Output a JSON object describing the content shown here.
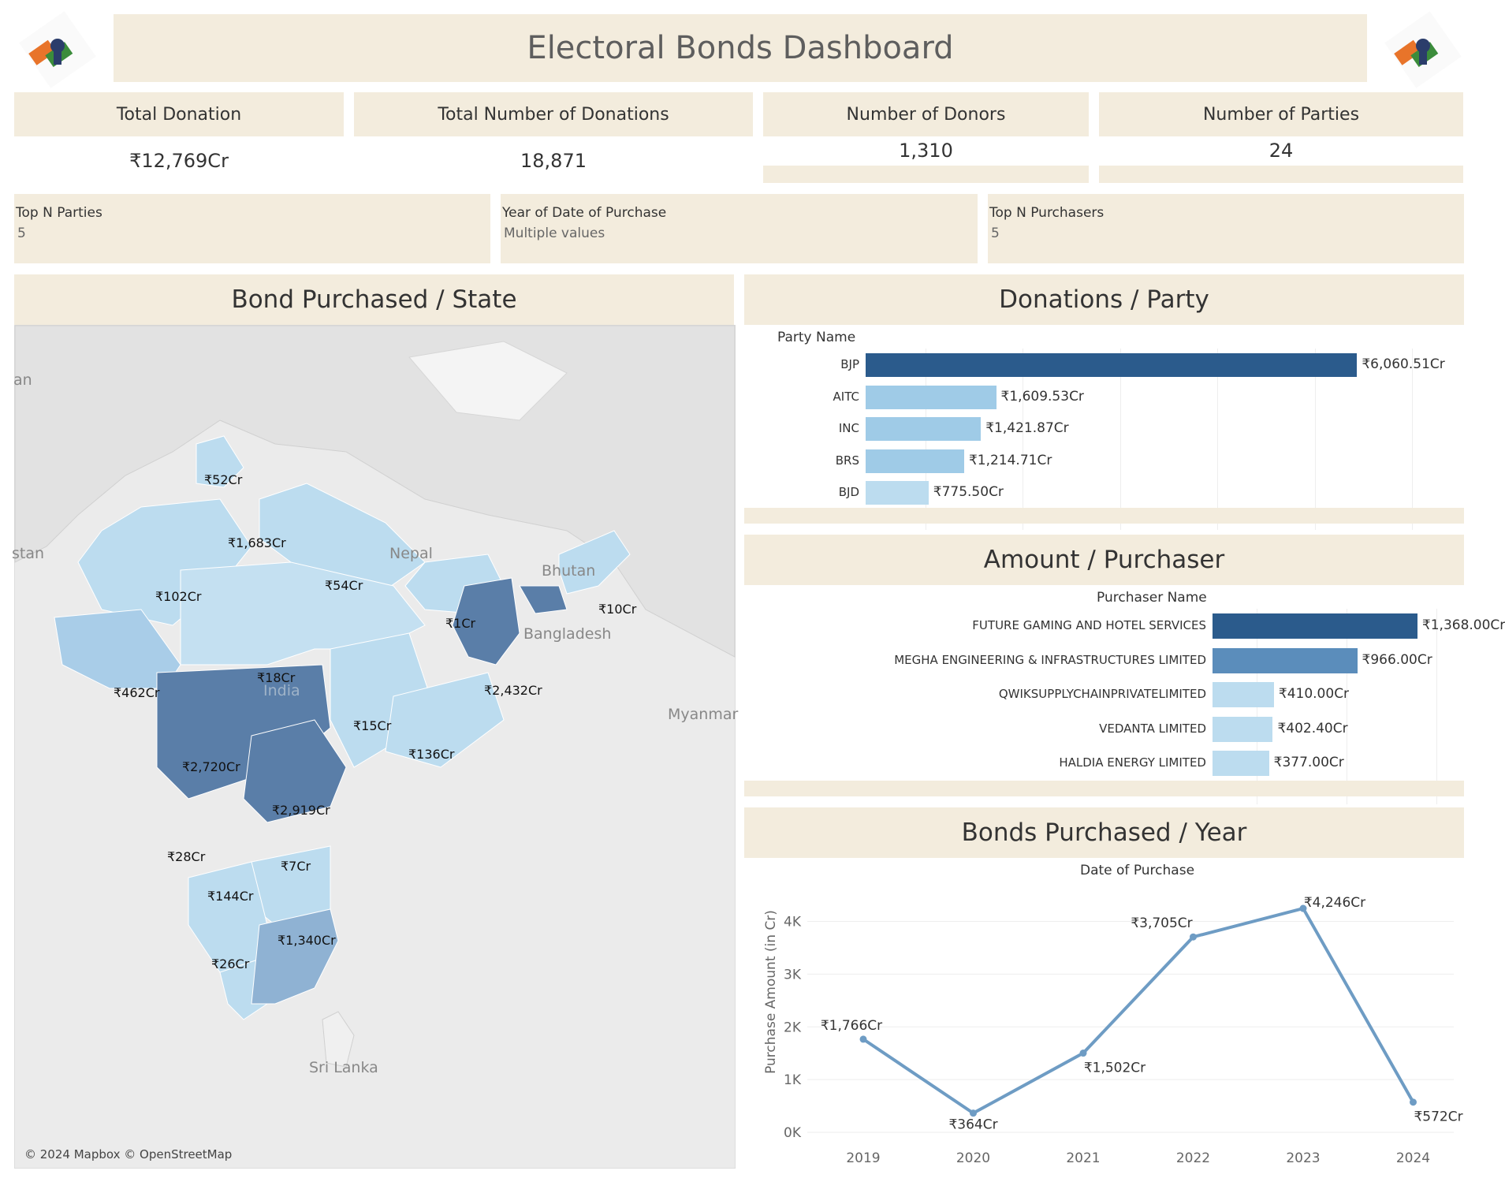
{
  "header": {
    "title": "Electoral Bonds Dashboard",
    "logo_left": "election-commission-logo",
    "logo_right": "election-commission-logo"
  },
  "kpis": [
    {
      "label": "Total Donation",
      "value": "₹12,769Cr"
    },
    {
      "label": "Total Number of Donations",
      "value": "18,871"
    },
    {
      "label": "Number of Donors",
      "value": "1,310"
    },
    {
      "label": "Number of Parties",
      "value": "24"
    }
  ],
  "filters": [
    {
      "label": "Top N Parties",
      "value": "5"
    },
    {
      "label": "Year of Date of Purchase",
      "value": "Multiple values"
    },
    {
      "label": "Top N Purchasers",
      "value": "5"
    }
  ],
  "map_section": {
    "title": "Bond Purchased / State",
    "credit": "© 2024 Mapbox © OpenStreetMap",
    "geo_labels": [
      "an",
      "stan",
      "Nepal",
      "Bhutan",
      "Bangladesh",
      "India",
      "Myanmar",
      "Sri Lanka"
    ],
    "state_values": [
      "₹52Cr",
      "₹1,683Cr",
      "₹102Cr",
      "₹54Cr",
      "₹1Cr",
      "₹10Cr",
      "₹462Cr",
      "₹18Cr",
      "₹2,432Cr",
      "₹15Cr",
      "₹136Cr",
      "₹2,720Cr",
      "₹2,919Cr",
      "₹28Cr",
      "₹7Cr",
      "₹144Cr",
      "₹1,340Cr",
      "₹26Cr"
    ],
    "colors": {
      "light": "#bcdcef",
      "mid": "#8fb2d3",
      "dark": "#5a7ea8"
    }
  },
  "party_section": {
    "title": "Donations / Party",
    "axis_title": "Party Name"
  },
  "purchaser_section": {
    "title": "Amount / Purchaser",
    "axis_title": "Purchaser Name"
  },
  "year_section": {
    "title": "Bonds Purchased / Year",
    "x_title": "Date of Purchase",
    "y_title": "Purchase Amount (in Cr)"
  },
  "chart_data": [
    {
      "type": "bar",
      "orientation": "horizontal",
      "categories": [
        "BJP",
        "AITC",
        "INC",
        "BRS",
        "BJD"
      ],
      "values": [
        6060.51,
        1609.53,
        1421.87,
        1214.71,
        775.5
      ],
      "labels": [
        "₹6,060.51Cr",
        "₹1,609.53Cr",
        "₹1,421.87Cr",
        "₹1,214.71Cr",
        "₹775.50Cr"
      ],
      "colors": [
        "#2b5b8c",
        "#9fcbe7",
        "#9fcbe7",
        "#9fcbe7",
        "#bcdcef"
      ],
      "ylabel": "Party Name",
      "xlim": [
        0,
        7000
      ]
    },
    {
      "type": "bar",
      "orientation": "horizontal",
      "categories": [
        "FUTURE GAMING AND HOTEL SERVICES",
        "MEGHA ENGINEERING & INFRASTRUCTURES LIMITED",
        "QWIKSUPPLYCHAINPRIVATELIMITED",
        "VEDANTA LIMITED",
        "HALDIA ENERGY LIMITED"
      ],
      "values": [
        1368.0,
        966.0,
        410.0,
        402.4,
        377.0
      ],
      "labels": [
        "₹1,368.00Cr",
        "₹966.00Cr",
        "₹410.00Cr",
        "₹402.40Cr",
        "₹377.00Cr"
      ],
      "colors": [
        "#2b5b8c",
        "#5b8dbb",
        "#bcdcef",
        "#bcdcef",
        "#bcdcef"
      ],
      "ylabel": "Purchaser Name",
      "xlim": [
        0,
        2000
      ]
    },
    {
      "type": "line",
      "x": [
        "2019",
        "2020",
        "2021",
        "2022",
        "2023",
        "2024"
      ],
      "values": [
        1766,
        364,
        1502,
        3705,
        4246,
        572
      ],
      "labels": [
        "₹1,766Cr",
        "₹364Cr",
        "₹1,502Cr",
        "₹3,705Cr",
        "₹4,246Cr",
        "₹572Cr"
      ],
      "xlabel": "Date of Purchase",
      "ylabel": "Purchase Amount (in Cr)",
      "yticks": [
        "0K",
        "1K",
        "2K",
        "3K",
        "4K"
      ],
      "ylim": [
        0,
        4800
      ],
      "color": "#6e9cc4"
    }
  ]
}
